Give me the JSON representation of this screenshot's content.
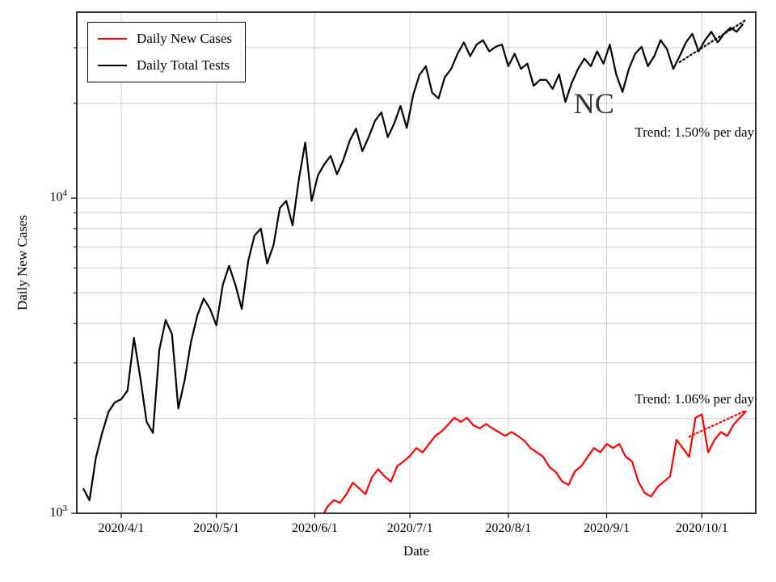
{
  "figure": {
    "xlabel": "Date",
    "ylabel": "Daily New Cases"
  },
  "legend": {
    "position": "upper left",
    "items": [
      {
        "label": "Daily New Cases",
        "color": "#ff0000"
      },
      {
        "label": "Daily Total Tests",
        "color": "#000000"
      }
    ]
  },
  "chart_data": {
    "type": "line",
    "xlabel": "Date",
    "ylabel": "Daily New Cases",
    "x_scale": "date",
    "y_scale": "log10",
    "xlim": [
      "2020-03-18",
      "2020-10-18"
    ],
    "ylim": [
      1000,
      38900
    ],
    "grid": true,
    "grid_color": "#cccccc",
    "x_ticks": [
      {
        "date": "2020-04-01",
        "label": "2020/4/1"
      },
      {
        "date": "2020-05-01",
        "label": "2020/5/1"
      },
      {
        "date": "2020-06-01",
        "label": "2020/6/1"
      },
      {
        "date": "2020-07-01",
        "label": "2020/7/1"
      },
      {
        "date": "2020-08-01",
        "label": "2020/8/1"
      },
      {
        "date": "2020-09-01",
        "label": "2020/9/1"
      },
      {
        "date": "2020-10-01",
        "label": "2020/10/1"
      }
    ],
    "y_major_ticks": [
      {
        "value": 1000,
        "base": "10",
        "exponent": "3"
      },
      {
        "value": 10000,
        "base": "10",
        "exponent": "4"
      }
    ],
    "y_minor_ticks": [
      2000,
      3000,
      4000,
      5000,
      6000,
      7000,
      8000,
      9000,
      20000,
      30000
    ],
    "series": [
      {
        "id": "daily-total-tests",
        "name": "Daily Total Tests",
        "color": "#000000",
        "start_date": "2020-03-20",
        "step_days": 2,
        "values": [
          1200,
          1100,
          1500,
          1800,
          2100,
          2250,
          2300,
          2450,
          3600,
          2700,
          1950,
          1800,
          3300,
          4100,
          3700,
          2150,
          2650,
          3500,
          4250,
          4800,
          4450,
          3950,
          5300,
          6100,
          5300,
          4450,
          6300,
          7600,
          8000,
          6200,
          7100,
          9300,
          9800,
          8200,
          11500,
          15000,
          9800,
          11800,
          12800,
          13600,
          11900,
          13200,
          15200,
          16600,
          14100,
          15600,
          17600,
          18700,
          15600,
          17200,
          19600,
          16700,
          21200,
          24600,
          26200,
          21600,
          20700,
          24200,
          25700,
          28700,
          31200,
          28200,
          30700,
          31700,
          29200,
          30200,
          30700,
          26200,
          28700,
          25700,
          26700,
          22700,
          23700,
          23700,
          22200,
          24700,
          20200,
          23200,
          25700,
          27700,
          26200,
          29200,
          26700,
          30700,
          24700,
          21700,
          25700,
          28700,
          30200,
          26200,
          28200,
          31700,
          29700,
          25700,
          28200,
          31200,
          33200,
          29200,
          31700,
          33700,
          31200,
          33200,
          34700,
          33700,
          35700
        ]
      },
      {
        "id": "daily-new-cases",
        "name": "Daily New Cases",
        "color": "#ff0000",
        "start_date": "2020-06-01",
        "step_days": 2,
        "values": [
          1000,
          960,
          1050,
          1100,
          1080,
          1150,
          1250,
          1200,
          1150,
          1300,
          1380,
          1310,
          1260,
          1410,
          1460,
          1520,
          1610,
          1560,
          1660,
          1760,
          1820,
          1910,
          2010,
          1950,
          2010,
          1900,
          1860,
          1920,
          1860,
          1810,
          1760,
          1810,
          1760,
          1700,
          1610,
          1560,
          1510,
          1400,
          1350,
          1260,
          1230,
          1360,
          1410,
          1510,
          1610,
          1560,
          1660,
          1610,
          1660,
          1510,
          1460,
          1260,
          1160,
          1130,
          1210,
          1260,
          1310,
          1710,
          1610,
          1510,
          2010,
          2060,
          1560,
          1710,
          1810,
          1760,
          1910,
          2010,
          2110
        ]
      }
    ],
    "trend_lines": [
      {
        "id": "tests-trend",
        "series": "Daily Total Tests",
        "label": "Trend: 1.50% per day",
        "rate_percent_per_day": 1.5,
        "color": "#000000",
        "start_date": "2020-09-24",
        "start_value": 27000,
        "end_date": "2020-10-15",
        "end_value": 36800,
        "label_y": 16000
      },
      {
        "id": "cases-trend",
        "series": "Daily New Cases",
        "label": "Trend: 1.06% per day",
        "rate_percent_per_day": 1.06,
        "color": "#ff0000",
        "start_date": "2020-09-27",
        "start_value": 1750,
        "end_date": "2020-10-15",
        "end_value": 2120,
        "label_y": 2280
      }
    ],
    "annotations": [
      {
        "text": "NC",
        "date": "2020-08-28",
        "value": 20000,
        "fontsize": 36,
        "color": "#333333"
      }
    ]
  }
}
